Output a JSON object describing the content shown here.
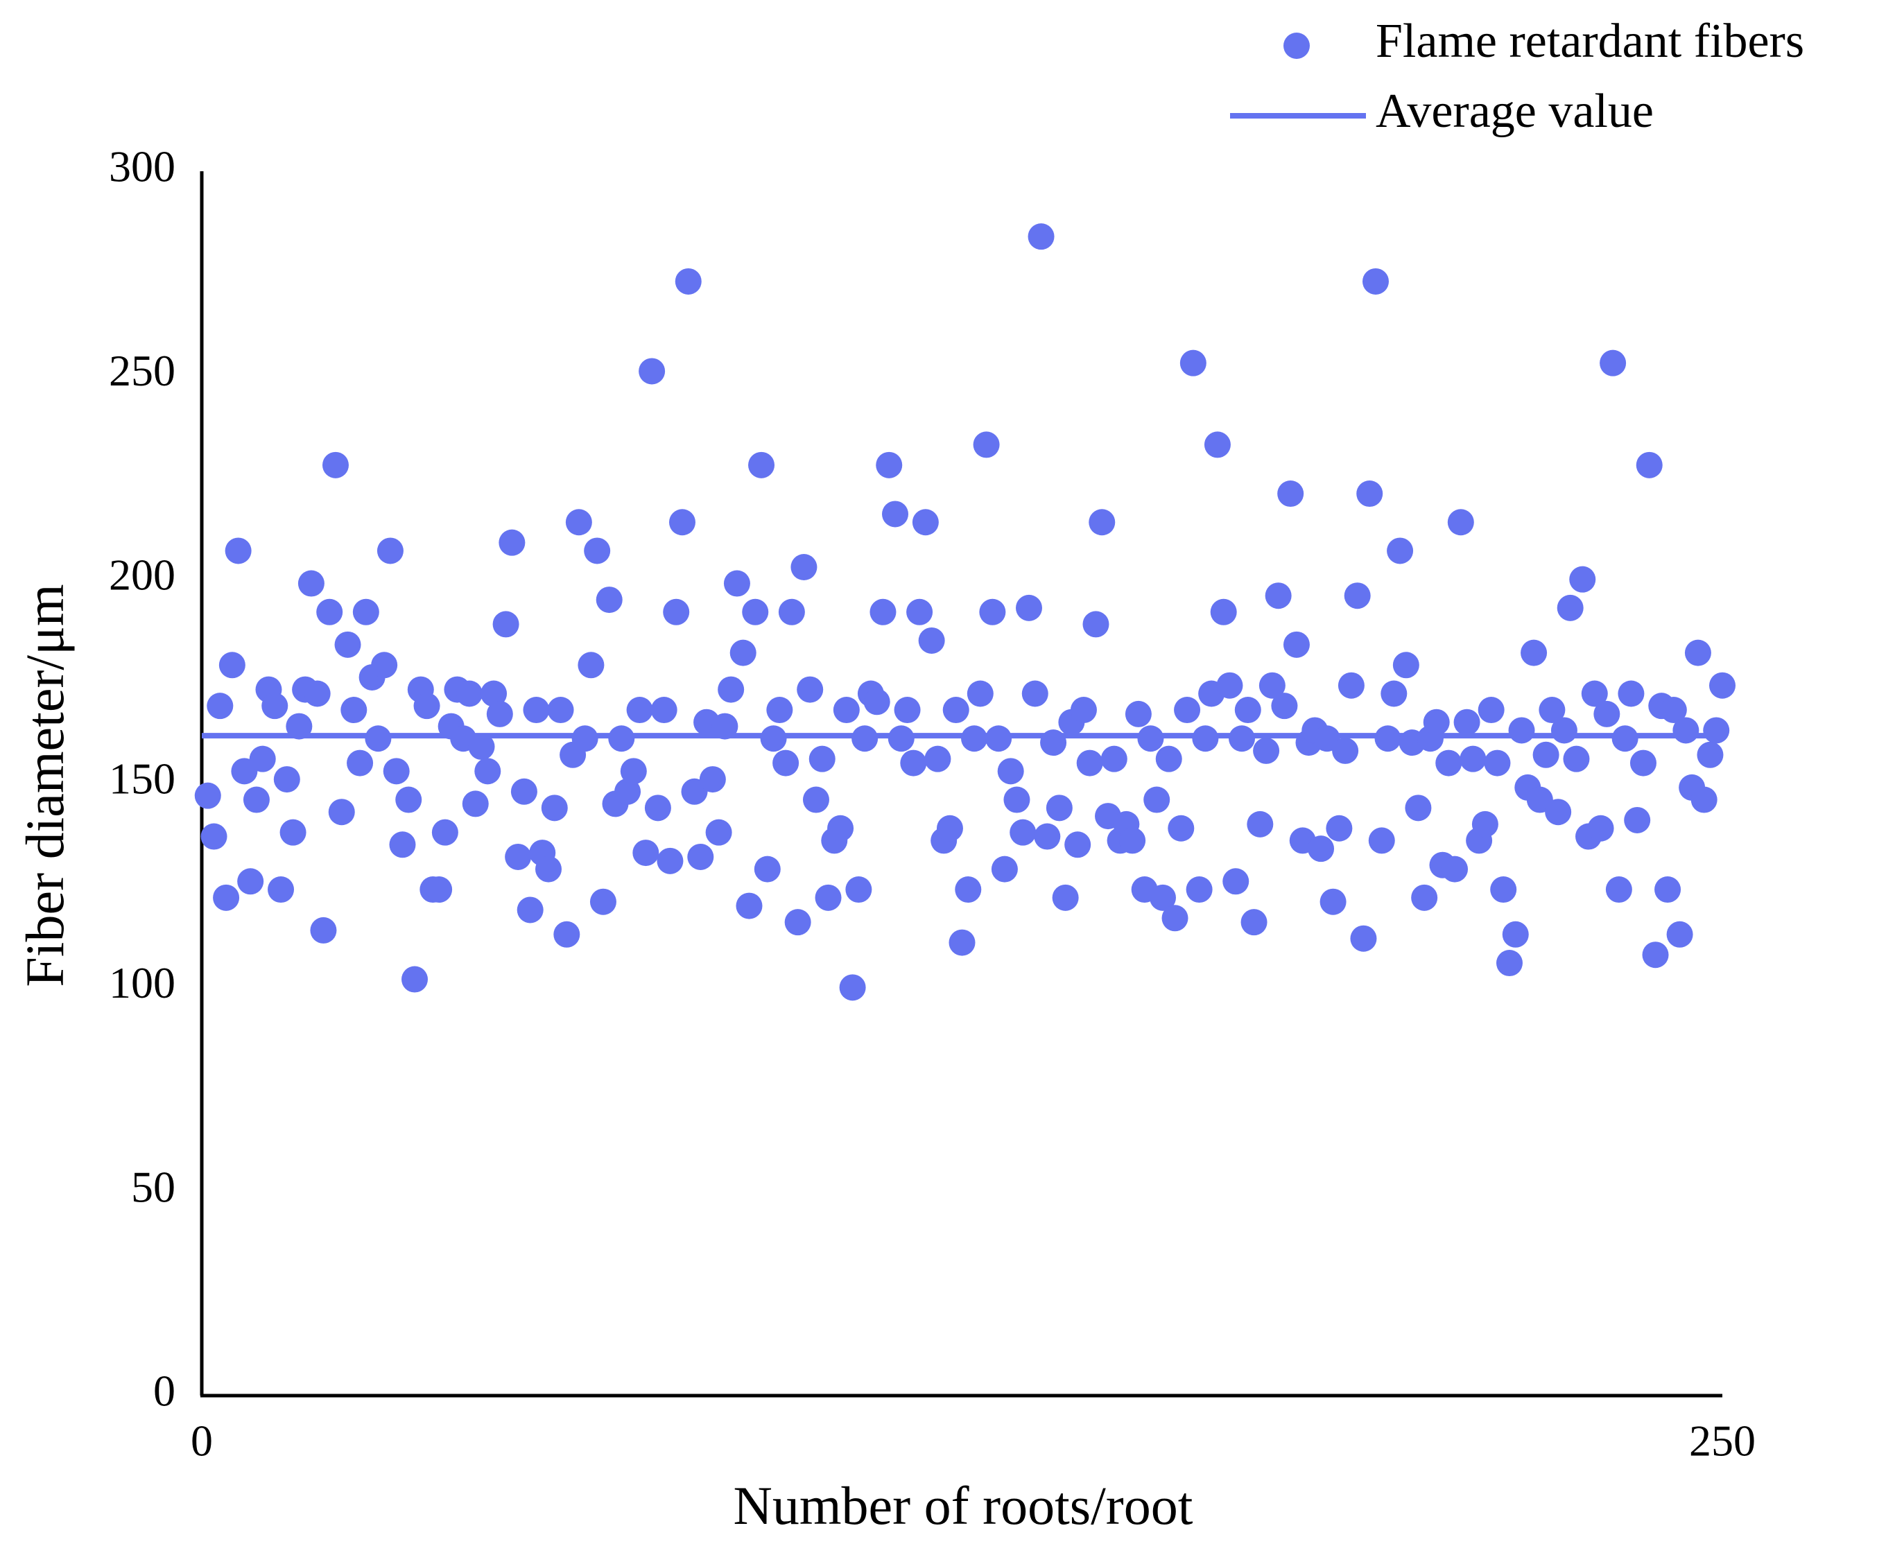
{
  "chart_data": {
    "type": "scatter",
    "x_label": "Number of roots/root",
    "y_label": "Fiber diameter/μm",
    "xlim": [
      0,
      250
    ],
    "xticks": [
      0,
      250
    ],
    "ylim": [
      0,
      300
    ],
    "yticks": [
      0,
      50,
      100,
      150,
      200,
      250,
      300
    ],
    "legend": "top-right",
    "series": [
      {
        "name": "Flame retardant fibers",
        "color": "#6473f0",
        "kind": "scatter",
        "x": [
          1,
          2,
          3,
          4,
          5,
          6,
          7,
          8,
          9,
          10,
          11,
          12,
          13,
          14,
          15,
          16,
          17,
          18,
          19,
          20,
          21,
          22,
          23,
          24,
          25,
          26,
          27,
          28,
          29,
          30,
          31,
          32,
          33,
          34,
          35,
          36,
          37,
          38,
          39,
          40,
          41,
          42,
          43,
          44,
          45,
          46,
          47,
          48,
          49,
          50,
          51,
          52,
          53,
          54,
          55,
          56,
          57,
          58,
          59,
          60,
          61,
          62,
          63,
          64,
          65,
          66,
          67,
          68,
          69,
          70,
          71,
          72,
          73,
          74,
          75,
          76,
          77,
          78,
          79,
          80,
          81,
          82,
          83,
          84,
          85,
          86,
          87,
          88,
          89,
          90,
          91,
          92,
          93,
          94,
          95,
          96,
          97,
          98,
          99,
          100,
          101,
          102,
          103,
          104,
          105,
          106,
          107,
          108,
          109,
          110,
          111,
          112,
          113,
          114,
          115,
          116,
          117,
          118,
          119,
          120,
          121,
          122,
          123,
          124,
          125,
          126,
          127,
          128,
          129,
          130,
          131,
          132,
          133,
          134,
          135,
          136,
          137,
          138,
          139,
          140,
          141,
          142,
          143,
          144,
          145,
          146,
          147,
          148,
          149,
          150,
          151,
          152,
          153,
          154,
          155,
          156,
          157,
          158,
          159,
          160,
          161,
          162,
          163,
          164,
          165,
          166,
          167,
          168,
          169,
          170,
          171,
          172,
          173,
          174,
          175,
          176,
          177,
          178,
          179,
          180,
          181,
          182,
          183,
          184,
          185,
          186,
          187,
          188,
          189,
          190,
          191,
          192,
          193,
          194,
          195,
          196,
          197,
          198,
          199,
          200,
          201,
          202,
          203,
          204,
          205,
          206,
          207,
          208,
          209,
          210,
          211,
          212,
          213,
          214,
          215,
          216,
          217,
          218,
          219,
          220,
          221,
          222,
          223,
          224,
          225,
          226,
          227,
          228,
          229,
          230,
          231,
          232,
          233,
          234,
          235,
          236,
          237,
          238,
          239,
          240,
          241,
          242,
          243,
          244,
          245,
          246,
          247,
          248,
          249,
          250
        ],
        "values": [
          147,
          137,
          169,
          122,
          179,
          207,
          153,
          126,
          146,
          156,
          173,
          169,
          124,
          151,
          138,
          164,
          173,
          199,
          172,
          114,
          192,
          228,
          143,
          184,
          168,
          155,
          192,
          176,
          161,
          179,
          207,
          153,
          135,
          146,
          102,
          173,
          169,
          124,
          124,
          138,
          164,
          173,
          161,
          172,
          145,
          159,
          153,
          172,
          167,
          189,
          209,
          132,
          148,
          119,
          168,
          133,
          129,
          144,
          168,
          113,
          157,
          214,
          161,
          179,
          207,
          121,
          195,
          145,
          161,
          148,
          153,
          168,
          133,
          251,
          144,
          168,
          131,
          192,
          214,
          273,
          148,
          132,
          165,
          151,
          138,
          164,
          173,
          199,
          182,
          120,
          192,
          228,
          129,
          161,
          168,
          155,
          192,
          116,
          203,
          173,
          146,
          156,
          122,
          136,
          139,
          168,
          100,
          124,
          161,
          172,
          170,
          192,
          228,
          216,
          161,
          168,
          155,
          192,
          214,
          185,
          156,
          136,
          139,
          168,
          111,
          124,
          161,
          172,
          233,
          192,
          161,
          129,
          153,
          146,
          138,
          193,
          172,
          284,
          137,
          160,
          144,
          122,
          165,
          135,
          168,
          155,
          189,
          214,
          142,
          156,
          136,
          140,
          136,
          167,
          124,
          161,
          146,
          122,
          156,
          117,
          139,
          168,
          253,
          124,
          161,
          172,
          233,
          192,
          174,
          126,
          161,
          168,
          116,
          140,
          158,
          174,
          196,
          169,
          221,
          184,
          136,
          160,
          163,
          134,
          161,
          121,
          139,
          158,
          174,
          196,
          112,
          221,
          273,
          136,
          161,
          172,
          207,
          179,
          160,
          144,
          122,
          161,
          165,
          130,
          155,
          129,
          214,
          165,
          156,
          136,
          140,
          168,
          155,
          124,
          106,
          113,
          163,
          149,
          182,
          146,
          157,
          168,
          143,
          163,
          193,
          156,
          200,
          137,
          172,
          139,
          167,
          253,
          124,
          161,
          172,
          141,
          155,
          228,
          108,
          169,
          124,
          168,
          113,
          163,
          149,
          182,
          146,
          157,
          163,
          174
        ]
      },
      {
        "name": "Average value",
        "color": "#6473f0",
        "kind": "line",
        "x": [
          0,
          250
        ],
        "values": [
          161.7,
          161.7
        ]
      }
    ]
  }
}
